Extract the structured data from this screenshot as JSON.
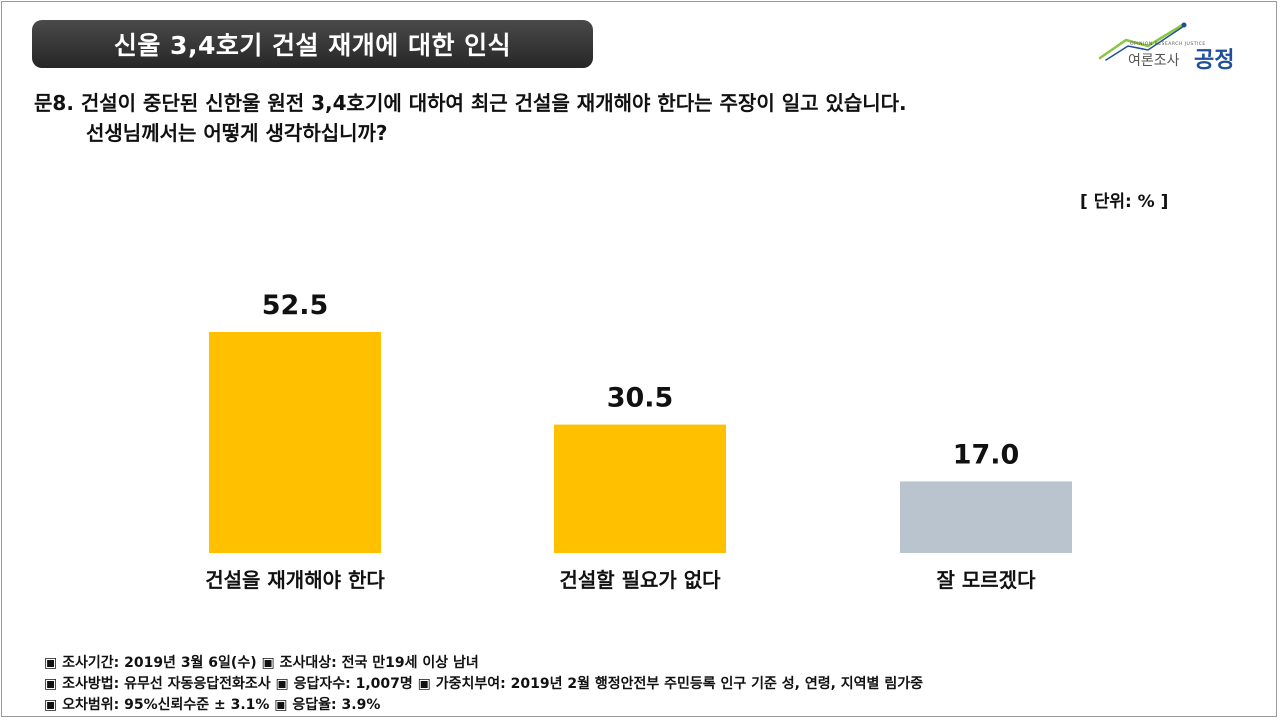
{
  "header": {
    "title": "신울 3,4호기 건설 재개에 대한 인식"
  },
  "logo": {
    "tagline": "OPINION RESEARCH JUSTICE",
    "sub": "여론조사",
    "main": "공정"
  },
  "question": {
    "line1": "문8. 건설이 중단된 신한울 원전 3,4호기에 대하여 최근 건설을 재개해야 한다는 주장이 일고 있습니다.",
    "line2": "선생님께서는 어떻게 생각하십니까?"
  },
  "unit_label": "[ 단위: % ]",
  "chart_data": {
    "type": "bar",
    "categories": [
      "건설을 재개해야 한다",
      "건설할 필요가 없다",
      "잘 모르겠다"
    ],
    "values": [
      52.5,
      30.5,
      17.0
    ],
    "value_labels": [
      "52.5",
      "30.5",
      "17.0"
    ],
    "colors": [
      "#FFC000",
      "#FFC000",
      "#BAC4CE"
    ],
    "ylim": [
      0,
      52.5
    ],
    "grid": false,
    "legend": "none"
  },
  "notes": [
    "▣ 조사기간: 2019년 3월 6일(수) ▣ 조사대상: 전국 만19세 이상 남녀",
    "▣ 조사방법: 유무선 자동응답전화조사 ▣ 응답자수: 1,007명 ▣ 가중치부여: 2019년 2월 행정안전부 주민등록 인구 기준 성, 연령, 지역별 림가중",
    "▣ 오차범위: 95%신뢰수준 ± 3.1% ▣ 응답율: 3.9%"
  ]
}
